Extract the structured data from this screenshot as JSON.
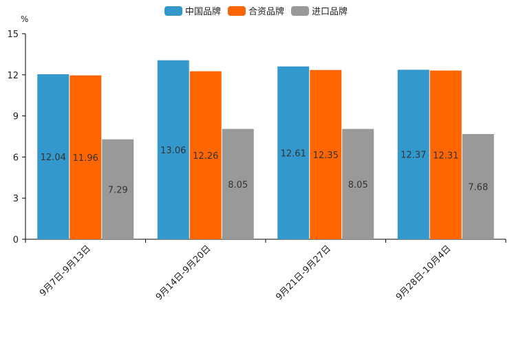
{
  "chart_data": {
    "type": "bar",
    "unit": "%",
    "categories": [
      "9月7日-9月13日",
      "9月14日-9月20日",
      "9月21日-9月27日",
      "9月28日-10月4日"
    ],
    "series": [
      {
        "name": "中国品牌",
        "color": "#3399cc",
        "values": [
          12.04,
          13.06,
          12.61,
          12.37
        ]
      },
      {
        "name": "合资品牌",
        "color": "#ff6600",
        "values": [
          11.96,
          12.26,
          12.35,
          12.31
        ]
      },
      {
        "name": "进口品牌",
        "color": "#999999",
        "values": [
          7.29,
          8.05,
          8.05,
          7.68
        ]
      }
    ],
    "yticks": [
      0,
      3,
      6,
      9,
      12,
      15
    ],
    "ylim": [
      0,
      15
    ],
    "legend_position": "top-center"
  }
}
